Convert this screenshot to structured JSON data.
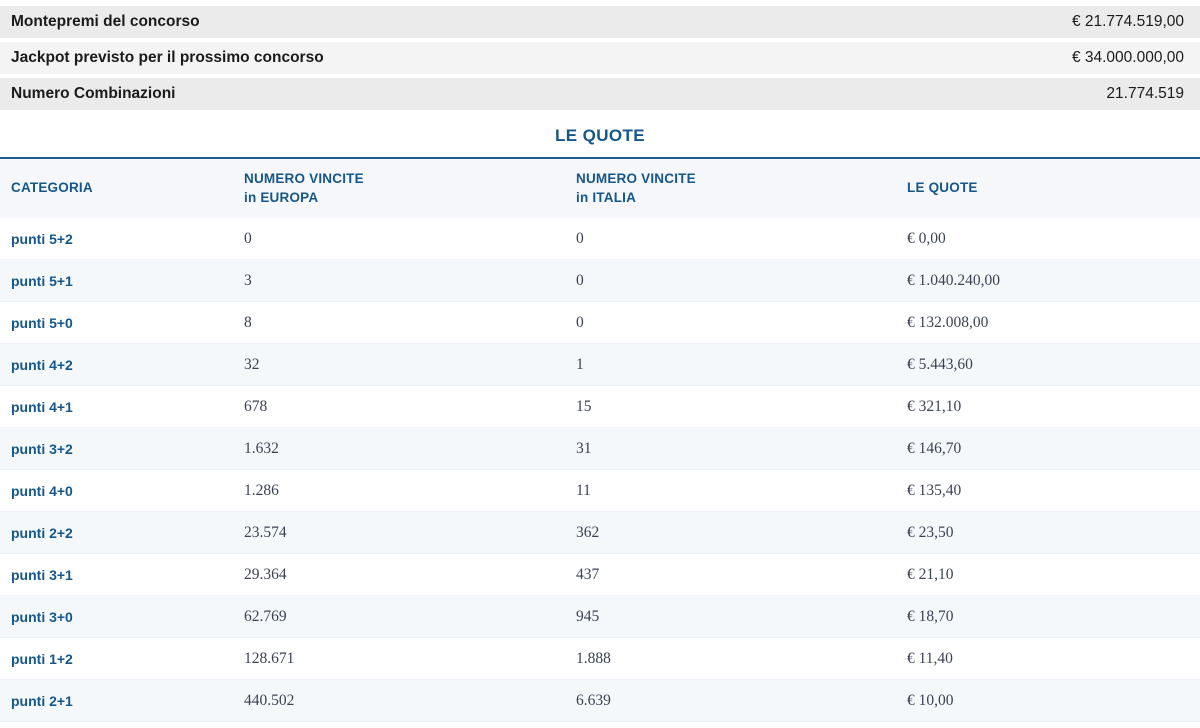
{
  "colors": {
    "accent_blue": "#15568c",
    "value_text": "#3b4254",
    "alt_row_bg": "#f5f8fb",
    "summary_bg_dark": "#ebebeb",
    "summary_bg_light": "#f4f4f4"
  },
  "summary": {
    "rows": [
      {
        "label": "Montepremi del concorso",
        "value": "€ 21.774.519,00"
      },
      {
        "label": "Jackpot previsto per il prossimo concorso",
        "value": "€ 34.000.000,00"
      },
      {
        "label": "Numero Combinazioni",
        "value": "21.774.519"
      }
    ]
  },
  "quotes_table": {
    "title": "LE QUOTE",
    "columns": [
      {
        "line1": "CATEGORIA",
        "line2": ""
      },
      {
        "line1": "NUMERO VINCITE",
        "line2": "in EUROPA"
      },
      {
        "line1": "NUMERO VINCITE",
        "line2": "in ITALIA"
      },
      {
        "line1": "LE QUOTE",
        "line2": ""
      }
    ],
    "rows": [
      {
        "category": "punti 5+2",
        "europe": "0",
        "italy": "0",
        "quote": "€ 0,00"
      },
      {
        "category": "punti 5+1",
        "europe": "3",
        "italy": "0",
        "quote": "€ 1.040.240,00"
      },
      {
        "category": "punti 5+0",
        "europe": "8",
        "italy": "0",
        "quote": "€ 132.008,00"
      },
      {
        "category": "punti 4+2",
        "europe": "32",
        "italy": "1",
        "quote": "€ 5.443,60"
      },
      {
        "category": "punti 4+1",
        "europe": "678",
        "italy": "15",
        "quote": "€ 321,10"
      },
      {
        "category": "punti 3+2",
        "europe": "1.632",
        "italy": "31",
        "quote": "€ 146,70"
      },
      {
        "category": "punti 4+0",
        "europe": "1.286",
        "italy": "11",
        "quote": "€ 135,40"
      },
      {
        "category": "punti 2+2",
        "europe": "23.574",
        "italy": "362",
        "quote": "€ 23,50"
      },
      {
        "category": "punti 3+1",
        "europe": "29.364",
        "italy": "437",
        "quote": "€ 21,10"
      },
      {
        "category": "punti 3+0",
        "europe": "62.769",
        "italy": "945",
        "quote": "€ 18,70"
      },
      {
        "category": "punti 1+2",
        "europe": "128.671",
        "italy": "1.888",
        "quote": "€ 11,40"
      },
      {
        "category": "punti 2+1",
        "europe": "440.502",
        "italy": "6.639",
        "quote": "€ 10,00"
      }
    ]
  }
}
